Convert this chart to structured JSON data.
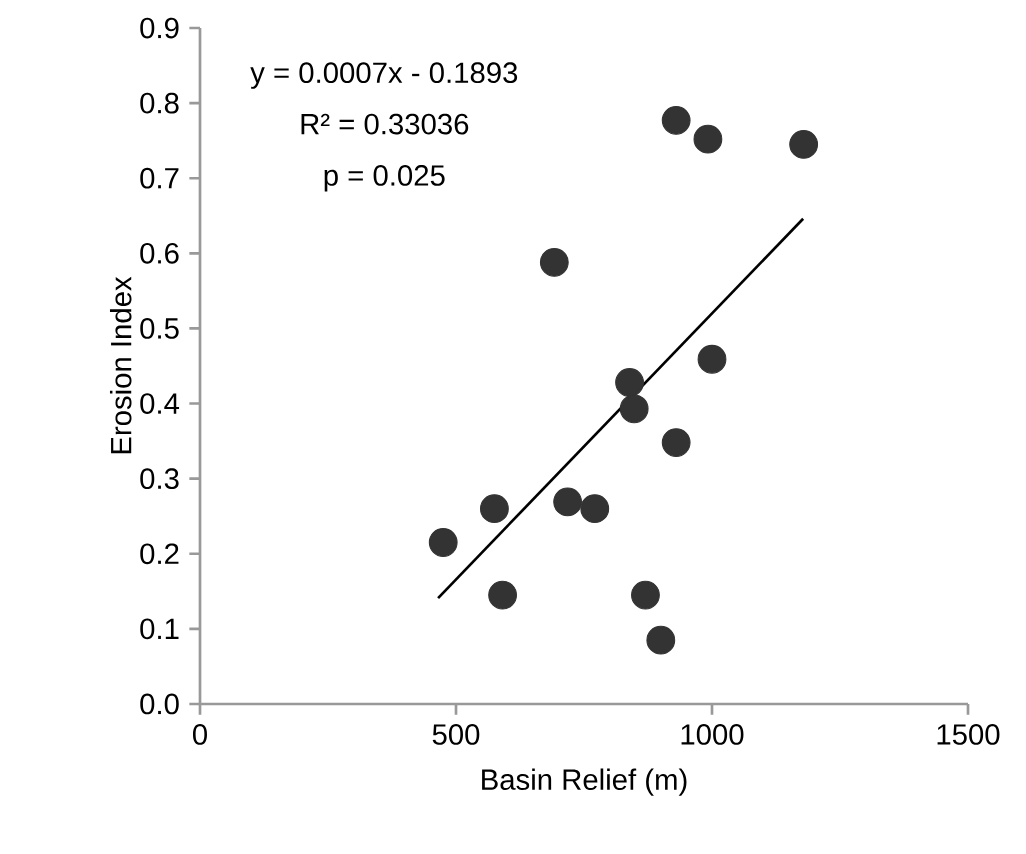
{
  "chart_data": {
    "type": "scatter",
    "xlabel": "Basin Relief (m)",
    "ylabel": "Erosion Index",
    "annotations": [
      "y = 0.0007x - 0.1893",
      "R² = 0.33036",
      "p = 0.025"
    ],
    "xlim": [
      0,
      1500
    ],
    "ylim": [
      0,
      0.9
    ],
    "xticks": [
      0,
      500,
      1000,
      1500
    ],
    "yticks": [
      {
        "value": 0,
        "label": "0.0"
      },
      {
        "value": 0.1,
        "label": "0.1"
      },
      {
        "value": 0.2,
        "label": "0.2"
      },
      {
        "value": 0.3,
        "label": "0.3"
      },
      {
        "value": 0.4,
        "label": "0.4"
      },
      {
        "value": 0.5,
        "label": "0.5"
      },
      {
        "value": 0.6,
        "label": "0.6"
      },
      {
        "value": 0.7,
        "label": "0.7"
      },
      {
        "value": 0.8,
        "label": "0.8"
      },
      {
        "value": 0.9,
        "label": "0.9"
      }
    ],
    "series": [
      {
        "marker": "circle",
        "color": "#333333",
        "x": [
          475,
          575,
          591,
          692,
          718,
          771,
          839,
          848,
          870,
          900,
          930,
          930,
          992,
          1000,
          1179
        ],
        "values": [
          0.215,
          0.26,
          0.145,
          0.588,
          0.269,
          0.26,
          0.428,
          0.393,
          0.145,
          0.085,
          0.348,
          0.777,
          0.752,
          0.459,
          0.745
        ]
      },
      {
        "type": "line",
        "color": "#000000",
        "line_style": "solid",
        "x": [
          465,
          1178
        ],
        "values": [
          0.141,
          0.646
        ]
      }
    ]
  }
}
